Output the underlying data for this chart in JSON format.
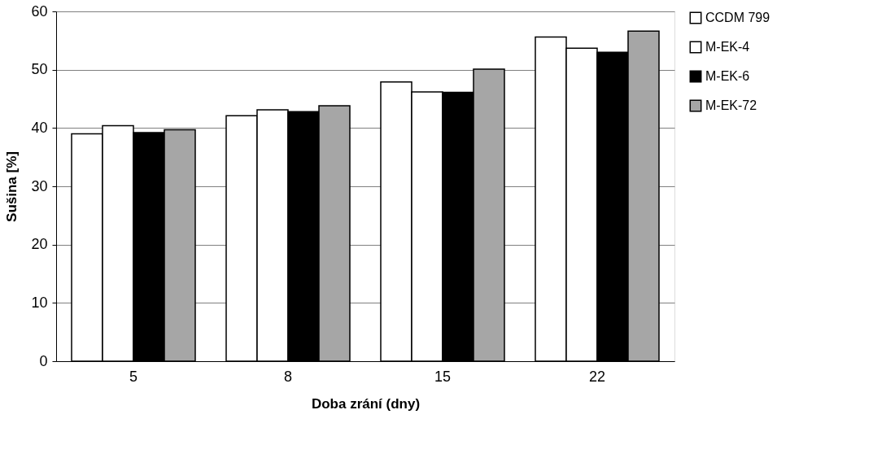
{
  "chart_data": {
    "type": "bar",
    "xlabel": "Doba zrání (dny)",
    "ylabel": "Sušina [%]",
    "categories": [
      "5",
      "8",
      "15",
      "22"
    ],
    "series": [
      {
        "name": "CCDM 799",
        "color": "#ffffff",
        "values": [
          39.0,
          42.1,
          47.9,
          55.6
        ]
      },
      {
        "name": "M-EK-4",
        "color": "#ffffff",
        "values": [
          40.4,
          43.1,
          46.2,
          53.7
        ]
      },
      {
        "name": "M-EK-6",
        "color": "#000000",
        "values": [
          39.2,
          42.8,
          46.1,
          53.0
        ]
      },
      {
        "name": "M-EK-72",
        "color": "#a6a6a6",
        "values": [
          39.7,
          43.8,
          50.1,
          56.6
        ]
      }
    ],
    "ylim": [
      0,
      60
    ],
    "yticks": [
      0,
      10,
      20,
      30,
      40,
      50,
      60
    ],
    "grid": "y",
    "legend": "right"
  }
}
